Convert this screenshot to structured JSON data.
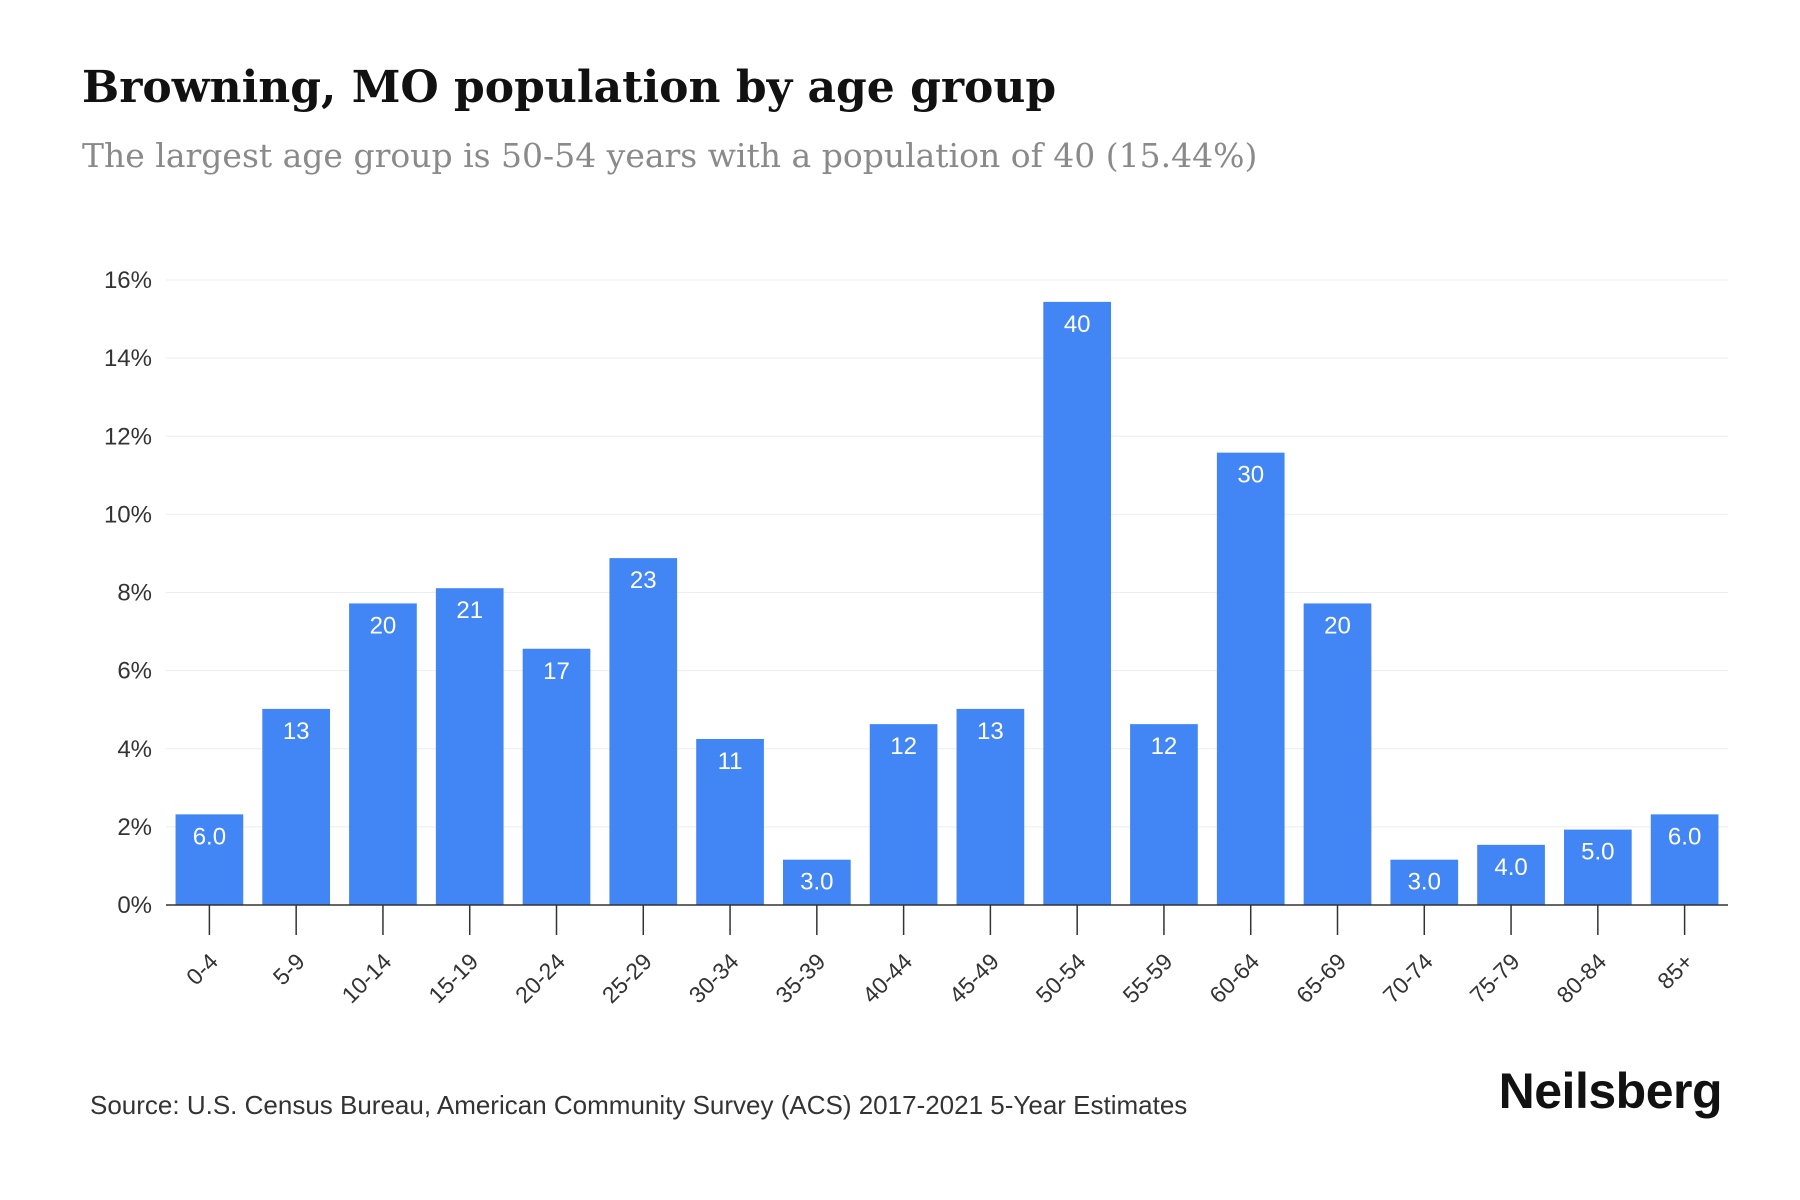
{
  "header": {
    "title": "Browning, MO population by age group",
    "subtitle": "The largest age group is 50-54 years with a population of 40 (15.44%)"
  },
  "footer": {
    "source": "Source: U.S. Census Bureau, American Community Survey (ACS) 2017-2021 5-Year Estimates",
    "brand": "Neilsberg"
  },
  "colors": {
    "bar": "#4285f4",
    "grid": "#eeeeee",
    "axis": "#333333"
  },
  "chart_data": {
    "type": "bar",
    "title": "Browning, MO population by age group",
    "subtitle": "The largest age group is 50-54 years with a population of 40 (15.44%)",
    "xlabel": "",
    "ylabel": "",
    "categories": [
      "0-4",
      "5-9",
      "10-14",
      "15-19",
      "20-24",
      "25-29",
      "30-34",
      "35-39",
      "40-44",
      "45-49",
      "50-54",
      "55-59",
      "60-64",
      "65-69",
      "70-74",
      "75-79",
      "80-84",
      "85+"
    ],
    "values": [
      2.32,
      5.02,
      7.72,
      8.11,
      6.56,
      8.88,
      4.25,
      1.16,
      4.63,
      5.02,
      15.44,
      4.63,
      11.58,
      7.72,
      1.16,
      1.54,
      1.93,
      2.32
    ],
    "data_labels": [
      "6.0",
      "13",
      "20",
      "21",
      "17",
      "23",
      "11",
      "3.0",
      "12",
      "13",
      "40",
      "12",
      "30",
      "20",
      "3.0",
      "4.0",
      "5.0",
      "6.0"
    ],
    "ylim": [
      0,
      16
    ],
    "yticks": [
      0,
      2,
      4,
      6,
      8,
      10,
      12,
      14,
      16
    ],
    "ytick_labels": [
      "0%",
      "2%",
      "4%",
      "6%",
      "8%",
      "10%",
      "12%",
      "14%",
      "16%"
    ],
    "grid": true,
    "legend": "none"
  }
}
